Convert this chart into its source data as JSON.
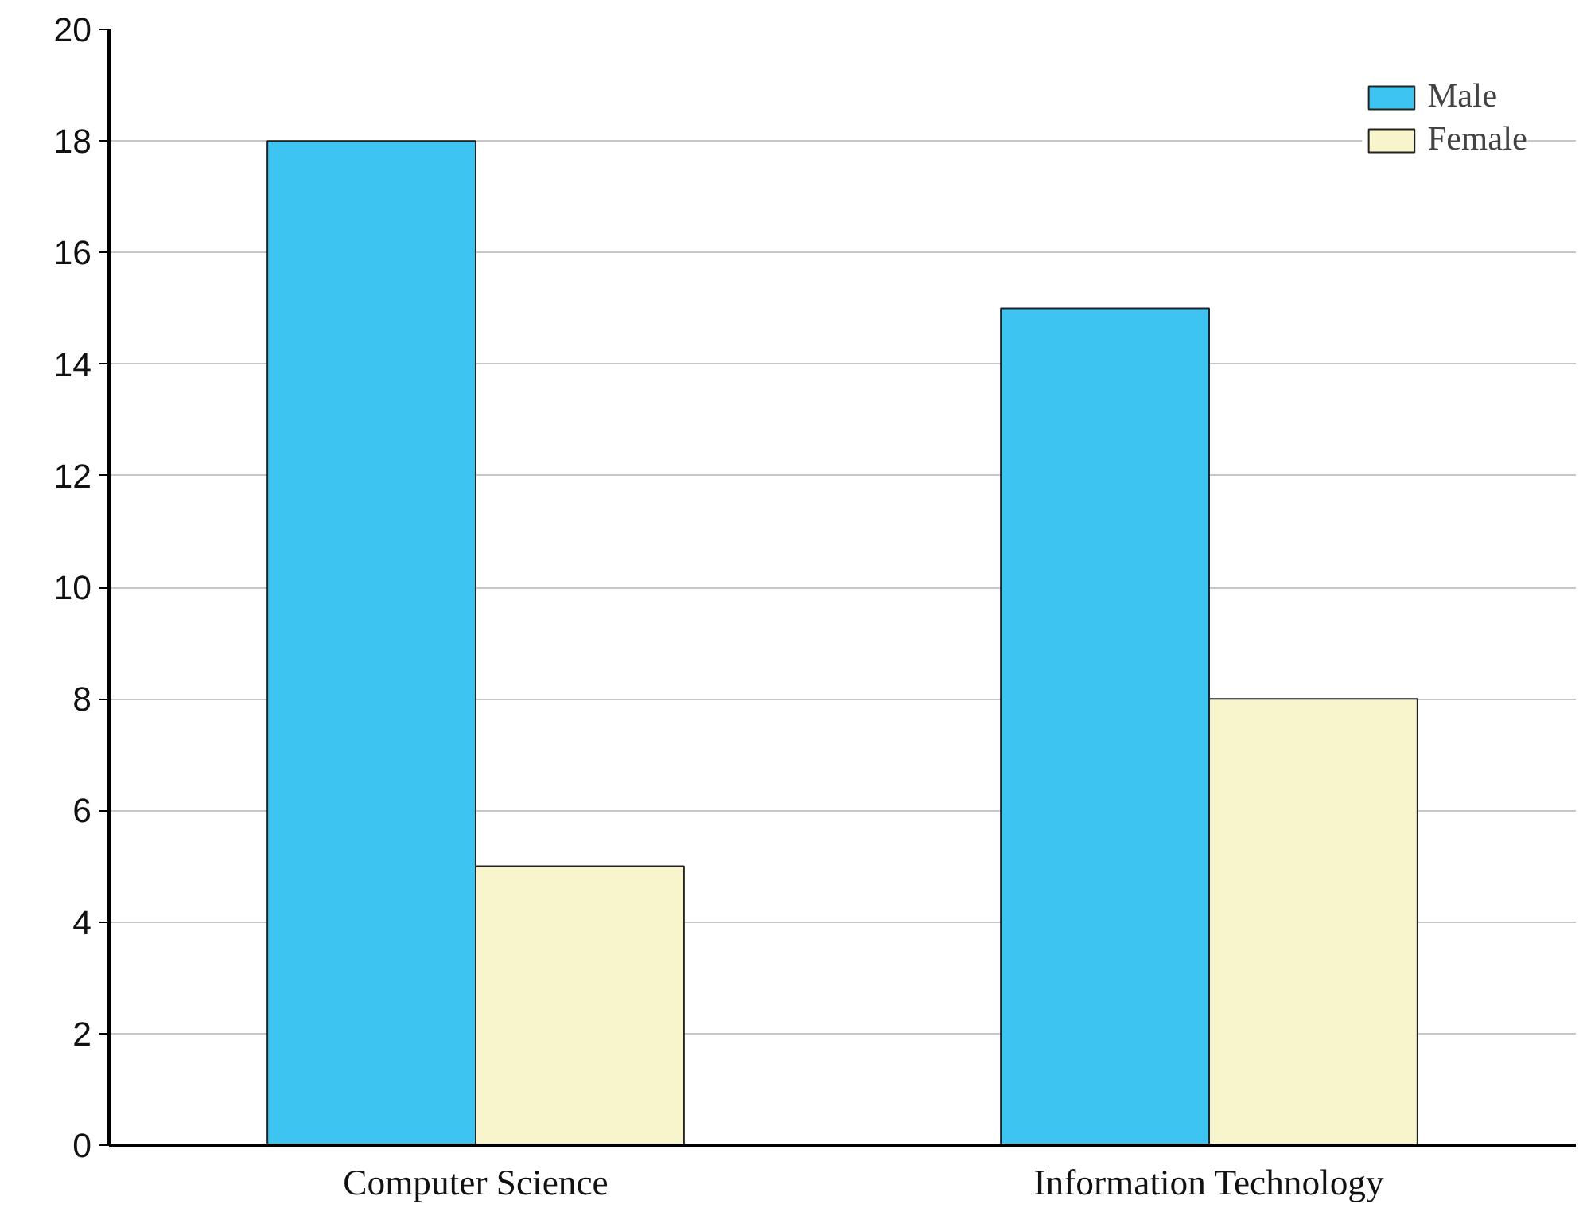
{
  "chart_data": {
    "type": "bar",
    "categories": [
      "Computer Science",
      "Information Technology"
    ],
    "series": [
      {
        "name": "Male",
        "color": "#3ec4f0",
        "values": [
          18,
          15
        ]
      },
      {
        "name": "Female",
        "color": "#f8f5cc",
        "values": [
          5,
          8
        ]
      }
    ],
    "ylim": [
      0,
      20
    ],
    "yticks": [
      0,
      2,
      4,
      6,
      8,
      10,
      12,
      14,
      16,
      18,
      20
    ],
    "grid": "y",
    "legend": "top right"
  }
}
